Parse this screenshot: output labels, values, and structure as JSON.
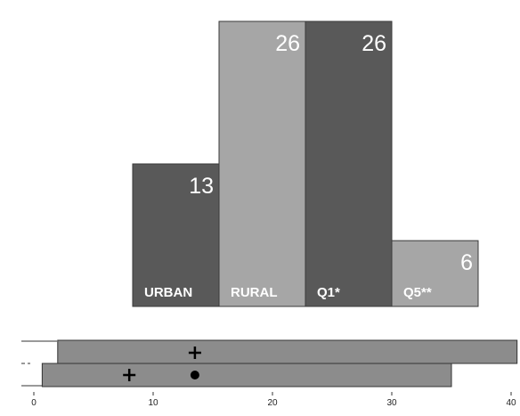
{
  "chart_data": [
    {
      "type": "bar",
      "categories": [
        "URBAN",
        "RURAL",
        "Q1*",
        "Q5**"
      ],
      "values": [
        13,
        26,
        26,
        6
      ],
      "data_labels": [
        "13",
        "26",
        "26",
        "6"
      ],
      "colors": [
        "#595959",
        "#a6a6a6",
        "#595959",
        "#a6a6a6"
      ],
      "ylim": [
        0,
        27.3
      ],
      "legend": "none",
      "grid": false
    },
    {
      "type": "bar",
      "orientation": "horizontal",
      "series": [
        {
          "range": [
            2,
            40.5
          ],
          "plus_marker": 13.5,
          "color": "#8c8c8c"
        },
        {
          "range": [
            0.7,
            35
          ],
          "plus_marker": 8,
          "dot_marker": 13.5,
          "color": "#8c8c8c"
        }
      ],
      "xlim": [
        0,
        40
      ],
      "x_ticks": [
        "0",
        "10",
        "20",
        "30",
        "40"
      ],
      "grid": false
    }
  ]
}
